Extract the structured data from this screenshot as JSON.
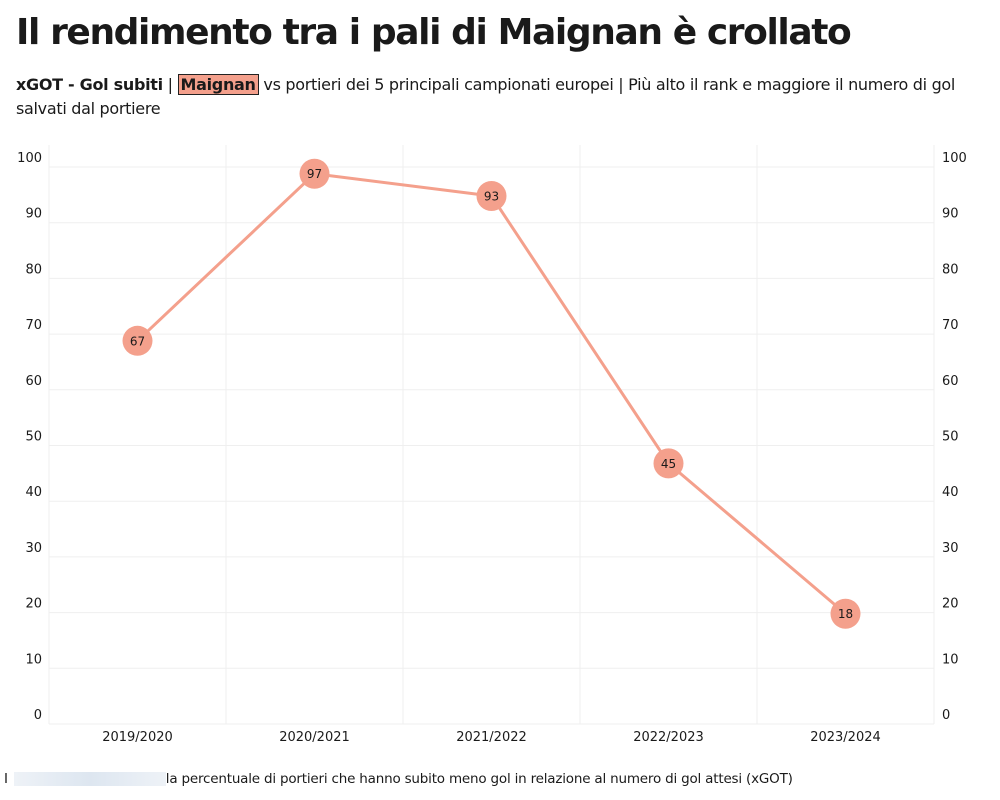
{
  "title": "Il rendimento tra i pali di Maignan è crollato",
  "subtitle": {
    "part1": "xGOT - Gol subiti",
    "sep1": " | ",
    "highlight": "Maignan",
    "part2": " vs portieri dei 5 principali campionati europei | Più alto il rank e maggiore il numero di gol salvati dal portiere"
  },
  "footnote": {
    "prefix": "I",
    "text": "la percentuale di portieri che hanno subito meno gol in relazione al numero di gol attesi (xGOT)"
  },
  "colors": {
    "line": "#f4a08c",
    "marker": "#f4a08c",
    "highlight": "#f4a08c",
    "grid": "#efefef"
  },
  "chart_data": {
    "type": "line",
    "categories": [
      "2019/2020",
      "2020/2021",
      "2021/2022",
      "2022/2023",
      "2023/2024"
    ],
    "series": [
      {
        "values": [
          67,
          97,
          93,
          45,
          18
        ]
      }
    ],
    "yticks": [
      0,
      10,
      20,
      30,
      40,
      50,
      60,
      70,
      80,
      90,
      100
    ],
    "ylim": [
      0,
      100
    ],
    "y_axis_both_sides": true,
    "data_labels": true,
    "grid": true,
    "title": "",
    "xlabel": "",
    "ylabel": ""
  }
}
